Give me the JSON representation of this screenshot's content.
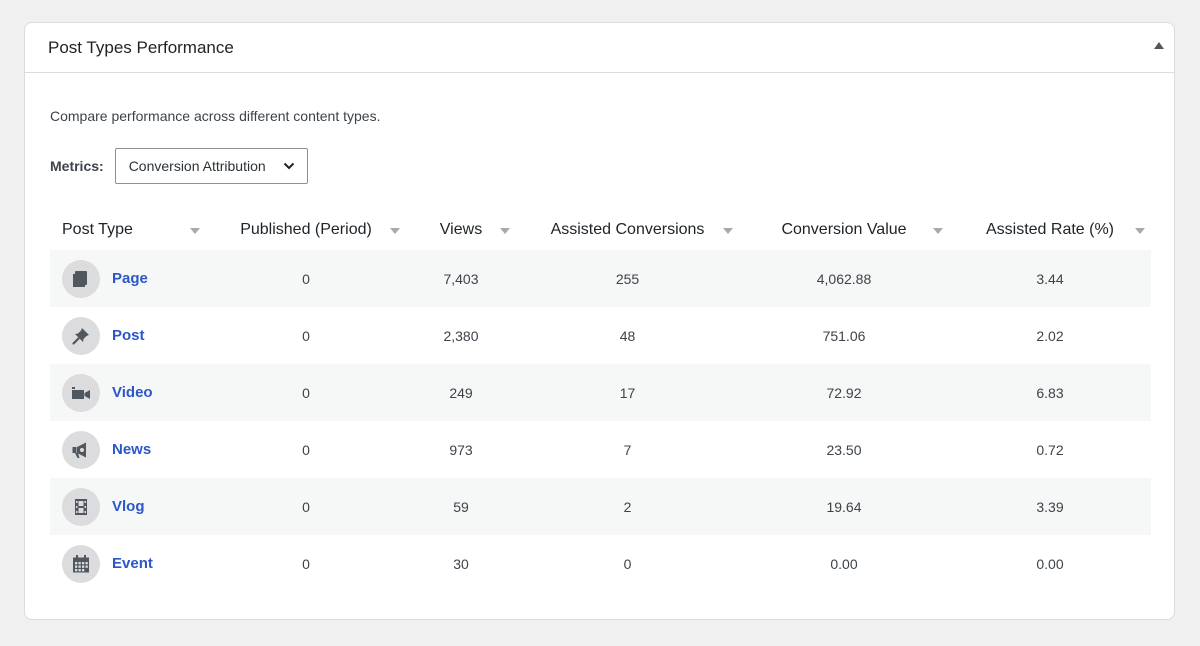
{
  "panel": {
    "title": "Post Types Performance",
    "description": "Compare performance across different content types."
  },
  "metrics": {
    "label": "Metrics:",
    "selected": "Conversion Attribution"
  },
  "table": {
    "headers": [
      "Post Type",
      "Published (Period)",
      "Views",
      "Assisted Conversions",
      "Conversion Value",
      "Assisted Rate (%)"
    ],
    "rows": [
      {
        "type": "Page",
        "icon": "page-icon",
        "published": "0",
        "views": "7,403",
        "assisted": "255",
        "value": "4,062.88",
        "rate": "3.44"
      },
      {
        "type": "Post",
        "icon": "pin-icon",
        "published": "0",
        "views": "2,380",
        "assisted": "48",
        "value": "751.06",
        "rate": "2.02"
      },
      {
        "type": "Video",
        "icon": "video-camera-icon",
        "published": "0",
        "views": "249",
        "assisted": "17",
        "value": "72.92",
        "rate": "6.83"
      },
      {
        "type": "News",
        "icon": "megaphone-icon",
        "published": "0",
        "views": "973",
        "assisted": "7",
        "value": "23.50",
        "rate": "0.72"
      },
      {
        "type": "Vlog",
        "icon": "film-strip-icon",
        "published": "0",
        "views": "59",
        "assisted": "2",
        "value": "19.64",
        "rate": "3.39"
      },
      {
        "type": "Event",
        "icon": "calendar-icon",
        "published": "0",
        "views": "30",
        "assisted": "0",
        "value": "0.00",
        "rate": "0.00"
      }
    ]
  },
  "colors": {
    "link": "#2c57c8",
    "stripe": "#f6f7f7",
    "icon_bg": "#dcdcde",
    "icon_fg": "#50575e"
  }
}
